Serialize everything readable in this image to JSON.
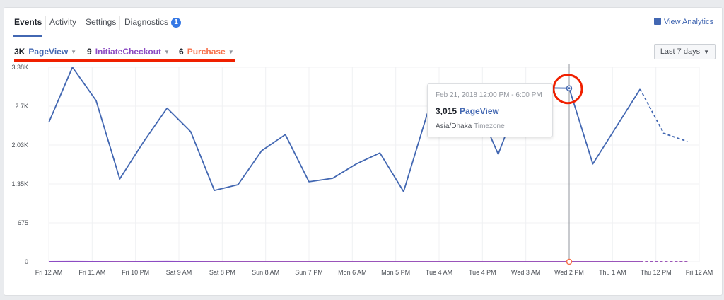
{
  "tabs": [
    {
      "label": "Events",
      "active": true
    },
    {
      "label": "Activity"
    },
    {
      "label": "Settings"
    },
    {
      "label": "Diagnostics",
      "badge": "1"
    }
  ],
  "view_analytics": {
    "label": "View Analytics",
    "icon": "chart-icon"
  },
  "metrics": [
    {
      "count": "3K",
      "name": "PageView",
      "color": "#4267b2"
    },
    {
      "count": "9",
      "name": "InitiateCheckout",
      "color": "#8c4bc3"
    },
    {
      "count": "6",
      "name": "Purchase",
      "color": "#f7714c"
    }
  ],
  "date_range": {
    "selected": "Last 7 days"
  },
  "tooltip": {
    "date": "Feb 21, 2018 12:00 PM - 6:00 PM",
    "value": "3,015",
    "series": "PageView",
    "timezone_value": "Asia/Dhaka",
    "timezone_label": "Timezone"
  },
  "chart_data": {
    "type": "line",
    "title": "",
    "xlabel": "",
    "ylabel": "",
    "ylim": [
      0,
      3380
    ],
    "grid": true,
    "legend_position": "top-left (metric selectors)",
    "y_ticks": [
      "3.38K",
      "2.7K",
      "2.03K",
      "1.35K",
      "675",
      "0"
    ],
    "x_ticks": [
      "Fri 12 AM",
      "Fri 11 AM",
      "Fri 10 PM",
      "Sat 9 AM",
      "Sat 8 PM",
      "Sun 8 AM",
      "Sun 7 PM",
      "Mon 6 AM",
      "Mon 5 PM",
      "Tue 4 AM",
      "Tue 4 PM",
      "Wed 3 AM",
      "Wed 2 PM",
      "Thu 1 AM",
      "Thu 12 PM",
      "Fri 12 AM"
    ],
    "interval": "6 hours",
    "series": [
      {
        "name": "PageView",
        "color": "#4267b2",
        "values": [
          2420,
          3380,
          2800,
          1440,
          2080,
          2670,
          2260,
          1240,
          1340,
          1930,
          2210,
          1390,
          1450,
          1700,
          1890,
          1220,
          2570,
          2940,
          2810,
          1870,
          2940,
          3020,
          3015,
          1700,
          2350,
          3000,
          2230,
          2090
        ],
        "dashed_from_index": 25
      },
      {
        "name": "InitiateCheckout",
        "color": "#8c4bc3",
        "values": [
          1,
          3,
          1,
          0,
          1,
          3,
          1,
          0,
          0,
          0,
          0,
          0,
          0,
          0,
          0,
          0,
          0,
          0,
          0,
          0,
          0,
          0,
          0,
          0,
          0,
          0,
          0,
          0
        ],
        "dashed_from_index": 25
      },
      {
        "name": "Purchase",
        "color": "#f7714c",
        "values": [
          0,
          1,
          0,
          0,
          0,
          1,
          0,
          0,
          0,
          0,
          0,
          0,
          0,
          0,
          0,
          0,
          0,
          0,
          0,
          0,
          0,
          0,
          0,
          0,
          0,
          0,
          0,
          0
        ],
        "dashed_from_index": 25
      }
    ],
    "highlight": {
      "index": 22,
      "label": "Feb 21, 2018 12:00 PM - 6:00 PM",
      "value": 3015
    }
  }
}
